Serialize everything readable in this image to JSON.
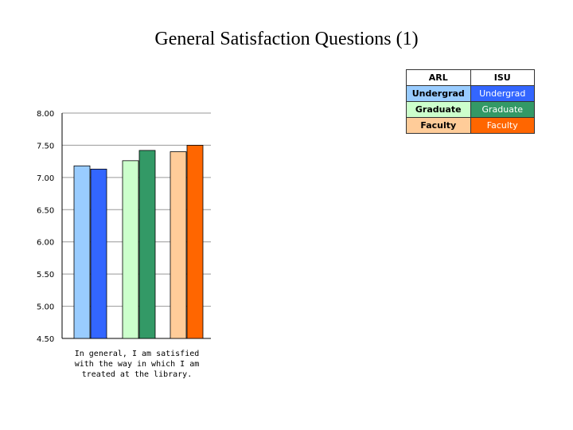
{
  "slide": {
    "title": "General Satisfaction Questions (1)"
  },
  "legend": {
    "headers": [
      "ARL",
      "ISU"
    ],
    "rows": [
      {
        "label": "Undergrad",
        "arl_color": "#99ccff",
        "isu_color": "#3366ff"
      },
      {
        "label": "Graduate",
        "arl_color": "#ccffcc",
        "isu_color": "#339966"
      },
      {
        "label": "Faculty",
        "arl_color": "#ffcc99",
        "isu_color": "#ff6600"
      }
    ]
  },
  "chart_data": {
    "type": "bar",
    "categories": [
      "In general, I am satisfied with the way in which I am treated at the library."
    ],
    "series": [
      {
        "name": "ARL Undergrad",
        "color": "#99ccff",
        "values": [
          7.18
        ]
      },
      {
        "name": "ISU Undergrad",
        "color": "#3366ff",
        "values": [
          7.13
        ]
      },
      {
        "name": "ARL Graduate",
        "color": "#ccffcc",
        "values": [
          7.26
        ]
      },
      {
        "name": "ISU Graduate",
        "color": "#339966",
        "values": [
          7.42
        ]
      },
      {
        "name": "ARL Faculty",
        "color": "#ffcc99",
        "values": [
          7.4
        ]
      },
      {
        "name": "ISU Faculty",
        "color": "#ff6600",
        "values": [
          7.5
        ]
      }
    ],
    "y_ticks": [
      "8.00",
      "7.50",
      "7.00",
      "6.50",
      "6.00",
      "5.50",
      "5.00",
      "4.50"
    ],
    "ylim": [
      4.5,
      8.0
    ],
    "grid": "horizontal",
    "legend_position": "top-right"
  }
}
